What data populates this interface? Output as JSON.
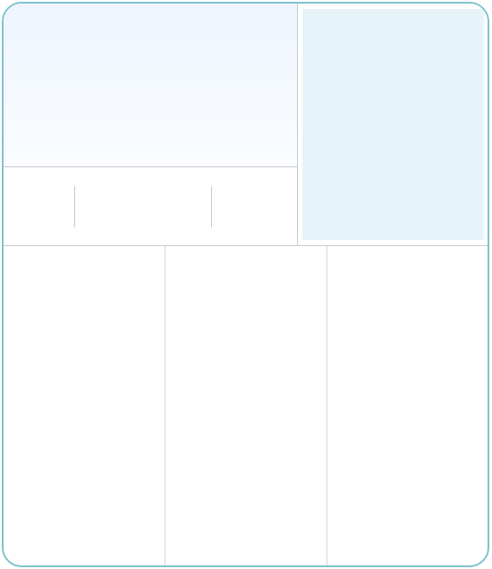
{
  "layout_panels": {
    "hero": "",
    "side_panel": "",
    "stats": [
      "",
      "",
      ""
    ],
    "columns": [
      "",
      "",
      ""
    ]
  },
  "colors": {
    "card_border": "#7fc3cf",
    "hero_top": "#eef5ff",
    "side_panel": "#e6f3f8",
    "divider": "#c9c9c9"
  }
}
